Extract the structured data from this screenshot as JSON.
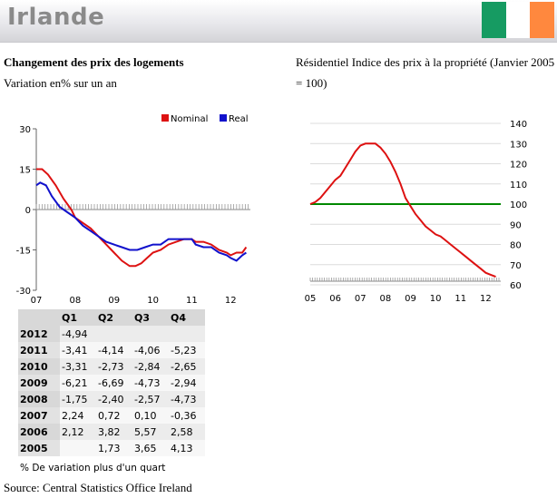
{
  "header": {
    "title": "Irlande",
    "flag_colors": [
      "#169b62",
      "#ffffff",
      "#ff883e"
    ]
  },
  "left": {
    "heading": "Changement des prix des logements",
    "subheading": "Variation en% sur un an"
  },
  "right": {
    "heading_line1": "Résidentiel Indice des prix à la propriété (Janvier 2005",
    "heading_line2": "= 100)"
  },
  "table": {
    "headers": [
      "",
      "Q1",
      "Q2",
      "Q3",
      "Q4"
    ],
    "rows": [
      [
        "2012",
        "-4,94",
        "",
        "",
        ""
      ],
      [
        "2011",
        "-3,41",
        "-4,14",
        "-4,06",
        "-5,23"
      ],
      [
        "2010",
        "-3,31",
        "-2,73",
        "-2,84",
        "-2,65"
      ],
      [
        "2009",
        "-6,21",
        "-6,69",
        "-4,73",
        "-2,94"
      ],
      [
        "2008",
        "-1,75",
        "-2,40",
        "-2,57",
        "-4,73"
      ],
      [
        "2007",
        "2,24",
        "0,72",
        "0,10",
        "-0,36"
      ],
      [
        "2006",
        "2,12",
        "3,82",
        "5,57",
        "2,58"
      ],
      [
        "2005",
        "",
        "1,73",
        "3,65",
        "4,13"
      ]
    ]
  },
  "footnote": "% De variation plus d'un quart",
  "source": "Source: Central Statistics Office Ireland",
  "chart_data": [
    {
      "type": "line",
      "ylim": [
        -30,
        30
      ],
      "xlim": [
        2007,
        2012.6
      ],
      "yticks": [
        "30",
        "15",
        "0",
        "-15",
        "-30"
      ],
      "xticks": [
        "07",
        "08",
        "09",
        "10",
        "11",
        "12"
      ],
      "legend_position": "top-right",
      "series": [
        {
          "name": "Nominal",
          "color": "#dd1111",
          "x": [
            2007.0,
            2007.15,
            2007.3,
            2007.5,
            2007.7,
            2007.9,
            2008.0,
            2008.2,
            2008.4,
            2008.6,
            2008.8,
            2009.0,
            2009.2,
            2009.4,
            2009.55,
            2009.7,
            2009.85,
            2010.0,
            2010.2,
            2010.4,
            2010.6,
            2010.8,
            2011.0,
            2011.1,
            2011.3,
            2011.5,
            2011.7,
            2011.9,
            2012.0,
            2012.15,
            2012.3,
            2012.4
          ],
          "y": [
            15,
            15,
            13,
            9,
            4,
            0,
            -3,
            -5,
            -7,
            -10,
            -13,
            -16,
            -19,
            -21,
            -21,
            -20,
            -18,
            -16,
            -15,
            -13,
            -12,
            -11,
            -11,
            -12,
            -12,
            -13,
            -15,
            -16,
            -17,
            -16,
            -16,
            -14
          ]
        },
        {
          "name": "Real",
          "color": "#1111cc",
          "x": [
            2007.0,
            2007.1,
            2007.25,
            2007.4,
            2007.6,
            2007.8,
            2008.0,
            2008.2,
            2008.4,
            2008.6,
            2008.8,
            2009.0,
            2009.2,
            2009.4,
            2009.6,
            2009.8,
            2010.0,
            2010.2,
            2010.4,
            2010.6,
            2010.8,
            2011.0,
            2011.1,
            2011.3,
            2011.5,
            2011.7,
            2011.9,
            2012.0,
            2012.15,
            2012.3,
            2012.4
          ],
          "y": [
            9,
            10,
            9,
            5,
            1,
            -1,
            -3,
            -6,
            -8,
            -10,
            -12,
            -13,
            -14,
            -15,
            -15,
            -14,
            -13,
            -13,
            -11,
            -11,
            -11,
            -11,
            -13,
            -14,
            -14,
            -16,
            -17,
            -18,
            -19,
            -17,
            -16
          ]
        }
      ]
    },
    {
      "type": "line",
      "ylim": [
        60,
        140
      ],
      "xlim": [
        2005,
        2012.6
      ],
      "yticks": [
        "140",
        "130",
        "120",
        "110",
        "100",
        "90",
        "80",
        "70",
        "60"
      ],
      "xticks": [
        "05",
        "06",
        "07",
        "08",
        "09",
        "10",
        "11",
        "12"
      ],
      "reference_line": {
        "y": 100,
        "color": "#008800"
      },
      "series": [
        {
          "name": "",
          "color": "#dd1111",
          "x": [
            2005.0,
            2005.2,
            2005.4,
            2005.6,
            2005.8,
            2006.0,
            2006.2,
            2006.4,
            2006.6,
            2006.8,
            2007.0,
            2007.2,
            2007.4,
            2007.6,
            2007.8,
            2008.0,
            2008.2,
            2008.4,
            2008.6,
            2008.8,
            2009.0,
            2009.2,
            2009.4,
            2009.6,
            2009.8,
            2010.0,
            2010.2,
            2010.4,
            2010.6,
            2010.8,
            2011.0,
            2011.2,
            2011.4,
            2011.6,
            2011.8,
            2012.0,
            2012.2,
            2012.4
          ],
          "y": [
            100,
            101,
            103,
            106,
            109,
            112,
            114,
            118,
            122,
            126,
            129,
            130,
            130,
            130,
            128,
            125,
            121,
            116,
            110,
            103,
            99,
            95,
            92,
            89,
            87,
            85,
            84,
            82,
            80,
            78,
            76,
            74,
            72,
            70,
            68,
            66,
            65,
            64
          ]
        }
      ]
    }
  ]
}
